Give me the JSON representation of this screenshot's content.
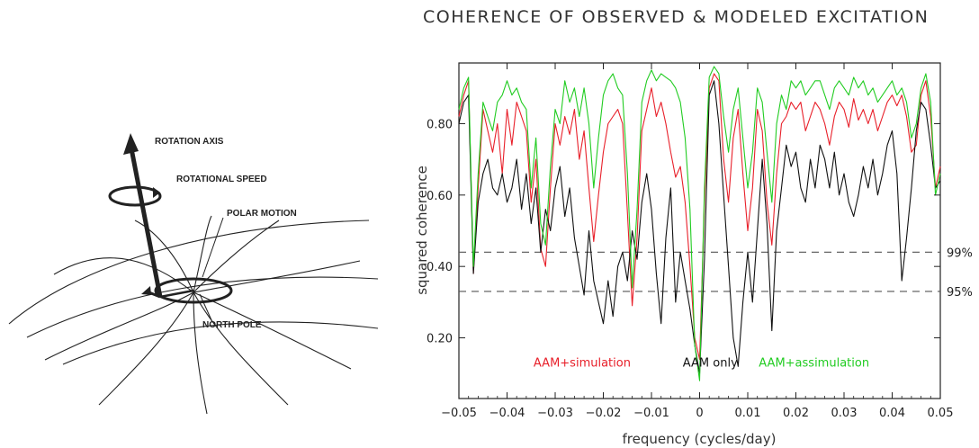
{
  "diagram": {
    "labels": {
      "rotation_axis": "ROTATION AXIS",
      "rotational_speed": "ROTATIONAL SPEED",
      "polar_motion": "POLAR MOTION",
      "north_pole": "NORTH POLE"
    }
  },
  "chart_data": {
    "type": "line",
    "title": "COHERENCE OF OBSERVED & MODELED EXCITATION",
    "xlabel": "frequency (cycles/day)",
    "ylabel": "squared coherence",
    "xlim": [
      -0.05,
      0.05
    ],
    "ylim": [
      0.03,
      0.97
    ],
    "xticks": [
      -0.05,
      -0.04,
      -0.03,
      -0.02,
      -0.01,
      0,
      0.01,
      0.02,
      0.03,
      0.04,
      0.05
    ],
    "xtick_labels": [
      "−0.05",
      "−0.04",
      "−0.03",
      "−0.02",
      "−0.01",
      "0",
      "0.01",
      "0.02",
      "0.03",
      "0.04",
      "0.05"
    ],
    "yticks": [
      0.2,
      0.4,
      0.6,
      0.8
    ],
    "ytick_labels": [
      "0.20",
      "0.40",
      "0.60",
      "0.80"
    ],
    "reference_lines": [
      {
        "y": 0.44,
        "label": "99%"
      },
      {
        "y": 0.33,
        "label": "95%"
      }
    ],
    "x": [
      -0.05,
      -0.049,
      -0.048,
      -0.047,
      -0.046,
      -0.045,
      -0.044,
      -0.043,
      -0.042,
      -0.041,
      -0.04,
      -0.039,
      -0.038,
      -0.037,
      -0.036,
      -0.035,
      -0.034,
      -0.033,
      -0.032,
      -0.031,
      -0.03,
      -0.029,
      -0.028,
      -0.027,
      -0.026,
      -0.025,
      -0.024,
      -0.023,
      -0.022,
      -0.021,
      -0.02,
      -0.019,
      -0.018,
      -0.017,
      -0.016,
      -0.015,
      -0.014,
      -0.013,
      -0.012,
      -0.011,
      -0.01,
      -0.009,
      -0.008,
      -0.007,
      -0.006,
      -0.005,
      -0.004,
      -0.003,
      -0.002,
      -0.001,
      0,
      0.001,
      0.002,
      0.003,
      0.004,
      0.005,
      0.006,
      0.007,
      0.008,
      0.009,
      0.01,
      0.011,
      0.012,
      0.013,
      0.014,
      0.015,
      0.016,
      0.017,
      0.018,
      0.019,
      0.02,
      0.021,
      0.022,
      0.023,
      0.024,
      0.025,
      0.026,
      0.027,
      0.028,
      0.029,
      0.03,
      0.031,
      0.032,
      0.033,
      0.034,
      0.035,
      0.036,
      0.037,
      0.038,
      0.039,
      0.04,
      0.041,
      0.042,
      0.043,
      0.044,
      0.045,
      0.046,
      0.047,
      0.048,
      0.049,
      0.05
    ],
    "series": [
      {
        "name": "AAM+simulation",
        "color": "#e8202a",
        "values": [
          0.82,
          0.88,
          0.92,
          0.38,
          0.62,
          0.84,
          0.78,
          0.72,
          0.8,
          0.66,
          0.84,
          0.74,
          0.86,
          0.82,
          0.78,
          0.58,
          0.7,
          0.45,
          0.4,
          0.62,
          0.8,
          0.74,
          0.82,
          0.77,
          0.84,
          0.7,
          0.78,
          0.62,
          0.47,
          0.6,
          0.72,
          0.8,
          0.82,
          0.84,
          0.8,
          0.55,
          0.29,
          0.48,
          0.78,
          0.84,
          0.9,
          0.82,
          0.86,
          0.8,
          0.72,
          0.65,
          0.68,
          0.58,
          0.4,
          0.2,
          0.14,
          0.58,
          0.9,
          0.94,
          0.92,
          0.7,
          0.58,
          0.76,
          0.84,
          0.66,
          0.5,
          0.62,
          0.84,
          0.78,
          0.58,
          0.46,
          0.66,
          0.8,
          0.82,
          0.86,
          0.84,
          0.86,
          0.78,
          0.82,
          0.86,
          0.84,
          0.8,
          0.74,
          0.82,
          0.86,
          0.84,
          0.79,
          0.87,
          0.81,
          0.84,
          0.8,
          0.84,
          0.78,
          0.82,
          0.86,
          0.88,
          0.85,
          0.88,
          0.82,
          0.72,
          0.74,
          0.88,
          0.92,
          0.82,
          0.62,
          0.68
        ]
      },
      {
        "name": "AAM only",
        "color": "#111111",
        "values": [
          0.8,
          0.86,
          0.88,
          0.38,
          0.58,
          0.66,
          0.7,
          0.62,
          0.6,
          0.66,
          0.58,
          0.62,
          0.7,
          0.56,
          0.66,
          0.52,
          0.62,
          0.44,
          0.56,
          0.5,
          0.62,
          0.68,
          0.54,
          0.62,
          0.48,
          0.4,
          0.32,
          0.5,
          0.36,
          0.3,
          0.24,
          0.36,
          0.26,
          0.4,
          0.44,
          0.36,
          0.5,
          0.42,
          0.58,
          0.66,
          0.56,
          0.38,
          0.24,
          0.48,
          0.62,
          0.3,
          0.44,
          0.36,
          0.28,
          0.18,
          0.1,
          0.42,
          0.88,
          0.92,
          0.8,
          0.6,
          0.4,
          0.2,
          0.12,
          0.3,
          0.44,
          0.3,
          0.5,
          0.7,
          0.52,
          0.22,
          0.5,
          0.62,
          0.74,
          0.68,
          0.72,
          0.62,
          0.58,
          0.7,
          0.62,
          0.74,
          0.7,
          0.62,
          0.72,
          0.6,
          0.66,
          0.58,
          0.54,
          0.6,
          0.68,
          0.62,
          0.7,
          0.6,
          0.66,
          0.74,
          0.78,
          0.66,
          0.36,
          0.48,
          0.62,
          0.78,
          0.86,
          0.84,
          0.74,
          0.62,
          0.64
        ]
      },
      {
        "name": "AAM+assimulation",
        "color": "#22cc22",
        "values": [
          0.84,
          0.9,
          0.93,
          0.4,
          0.66,
          0.86,
          0.82,
          0.78,
          0.86,
          0.88,
          0.92,
          0.88,
          0.9,
          0.86,
          0.84,
          0.62,
          0.76,
          0.52,
          0.46,
          0.68,
          0.84,
          0.8,
          0.92,
          0.86,
          0.9,
          0.82,
          0.9,
          0.8,
          0.62,
          0.76,
          0.88,
          0.92,
          0.94,
          0.9,
          0.88,
          0.66,
          0.34,
          0.56,
          0.86,
          0.92,
          0.95,
          0.92,
          0.94,
          0.93,
          0.92,
          0.9,
          0.86,
          0.76,
          0.56,
          0.18,
          0.08,
          0.62,
          0.93,
          0.96,
          0.94,
          0.82,
          0.72,
          0.84,
          0.9,
          0.76,
          0.62,
          0.72,
          0.9,
          0.86,
          0.72,
          0.58,
          0.8,
          0.88,
          0.84,
          0.92,
          0.9,
          0.92,
          0.88,
          0.9,
          0.92,
          0.92,
          0.88,
          0.84,
          0.9,
          0.92,
          0.9,
          0.88,
          0.93,
          0.9,
          0.92,
          0.88,
          0.9,
          0.86,
          0.88,
          0.9,
          0.92,
          0.88,
          0.9,
          0.86,
          0.76,
          0.8,
          0.9,
          0.94,
          0.86,
          0.6,
          0.66
        ]
      }
    ],
    "legend": [
      {
        "label": "AAM+simulation",
        "color": "#e8202a"
      },
      {
        "label": "AAM only",
        "color": "#111111"
      },
      {
        "label": "AAM+assimulation",
        "color": "#22cc22"
      }
    ]
  }
}
